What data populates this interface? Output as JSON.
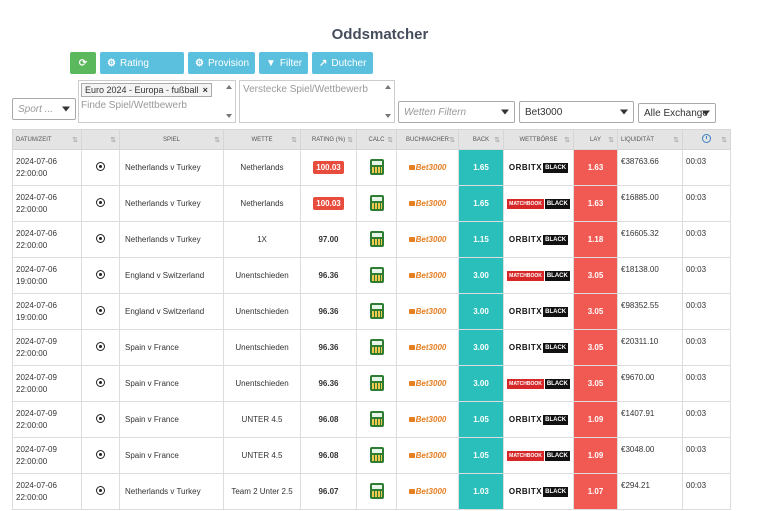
{
  "page": {
    "title": "Oddsmatcher"
  },
  "toolbar": {
    "refresh_icon": "refresh-icon",
    "rating_label": "Rating",
    "provision_label": "Provision",
    "filter_label": "Filter",
    "dutcher_label": "Dutcher"
  },
  "filters": {
    "sport_placeholder": "Sport ...",
    "competition_tag": "Euro 2024 - Europa - fußball",
    "competition_tag_remove": "×",
    "find_placeholder": "Finde Spiel/Wettbewerb",
    "hide_placeholder": "Verstecke Spiel/Wettbewerb",
    "bets_placeholder": "Wetten Filtern",
    "bookmaker_value": "Bet3000",
    "exchange_value": "Alle Exchange"
  },
  "table": {
    "headers": [
      "DATUM/ZEIT",
      "",
      "SPIEL",
      "WETTE",
      "RATING (%)",
      "CALC",
      "BUCHMACHER",
      "BACK",
      "WETTBÖRSE",
      "LAY",
      "LIQUIDITÄT",
      ""
    ],
    "sort_glyph": "⇅",
    "bookmaker_logo_text": "Bet3000",
    "orbit_text": "ORBITX",
    "matchbook_text": "MATCHBOOK",
    "black_text": "BLACK",
    "rows": [
      {
        "date": "2024-07-06",
        "time": "22:00:00",
        "game": "Netherlands v Turkey",
        "bet": "Netherlands",
        "rating": "100.03",
        "highlight": true,
        "back": "1.65",
        "exchange": "orbitx",
        "lay": "1.63",
        "liquidity": "€38763.66",
        "age": "00:03"
      },
      {
        "date": "2024-07-06",
        "time": "22:00:00",
        "game": "Netherlands v Turkey",
        "bet": "Netherlands",
        "rating": "100.03",
        "highlight": true,
        "back": "1.65",
        "exchange": "matchbook",
        "lay": "1.63",
        "liquidity": "€16885.00",
        "age": "00:03"
      },
      {
        "date": "2024-07-06",
        "time": "22:00:00",
        "game": "Netherlands v Turkey",
        "bet": "1X",
        "rating": "97.00",
        "highlight": false,
        "back": "1.15",
        "exchange": "orbitx",
        "lay": "1.18",
        "liquidity": "€16605.32",
        "age": "00:03"
      },
      {
        "date": "2024-07-06",
        "time": "19:00:00",
        "game": "England v Switzerland",
        "bet": "Unentschieden",
        "rating": "96.36",
        "highlight": false,
        "back": "3.00",
        "exchange": "matchbook",
        "lay": "3.05",
        "liquidity": "€18138.00",
        "age": "00:03"
      },
      {
        "date": "2024-07-06",
        "time": "19:00:00",
        "game": "England v Switzerland",
        "bet": "Unentschieden",
        "rating": "96.36",
        "highlight": false,
        "back": "3.00",
        "exchange": "orbitx",
        "lay": "3.05",
        "liquidity": "€98352.55",
        "age": "00:03"
      },
      {
        "date": "2024-07-09",
        "time": "22:00:00",
        "game": "Spain v France",
        "bet": "Unentschieden",
        "rating": "96.36",
        "highlight": false,
        "back": "3.00",
        "exchange": "orbitx",
        "lay": "3.05",
        "liquidity": "€20311.10",
        "age": "00:03"
      },
      {
        "date": "2024-07-09",
        "time": "22:00:00",
        "game": "Spain v France",
        "bet": "Unentschieden",
        "rating": "96.36",
        "highlight": false,
        "back": "3.00",
        "exchange": "matchbook",
        "lay": "3.05",
        "liquidity": "€9670.00",
        "age": "00:03"
      },
      {
        "date": "2024-07-09",
        "time": "22:00:00",
        "game": "Spain v France",
        "bet": "UNTER 4.5",
        "rating": "96.08",
        "highlight": false,
        "back": "1.05",
        "exchange": "orbitx",
        "lay": "1.09",
        "liquidity": "€1407.91",
        "age": "00:03"
      },
      {
        "date": "2024-07-09",
        "time": "22:00:00",
        "game": "Spain v France",
        "bet": "UNTER 4.5",
        "rating": "96.08",
        "highlight": false,
        "back": "1.05",
        "exchange": "matchbook",
        "lay": "1.09",
        "liquidity": "€3048.00",
        "age": "00:03"
      },
      {
        "date": "2024-07-06",
        "time": "22:00:00",
        "game": "Netherlands v Turkey",
        "bet": "Team 2 Unter 2.5",
        "rating": "96.07",
        "highlight": false,
        "back": "1.03",
        "exchange": "orbitx",
        "lay": "1.07",
        "liquidity": "€294.21",
        "age": "00:03"
      }
    ]
  },
  "colors": {
    "back": "#2abfba",
    "lay": "#f05a52",
    "accent": "#5bc0de",
    "refresh": "#5cb85c"
  }
}
